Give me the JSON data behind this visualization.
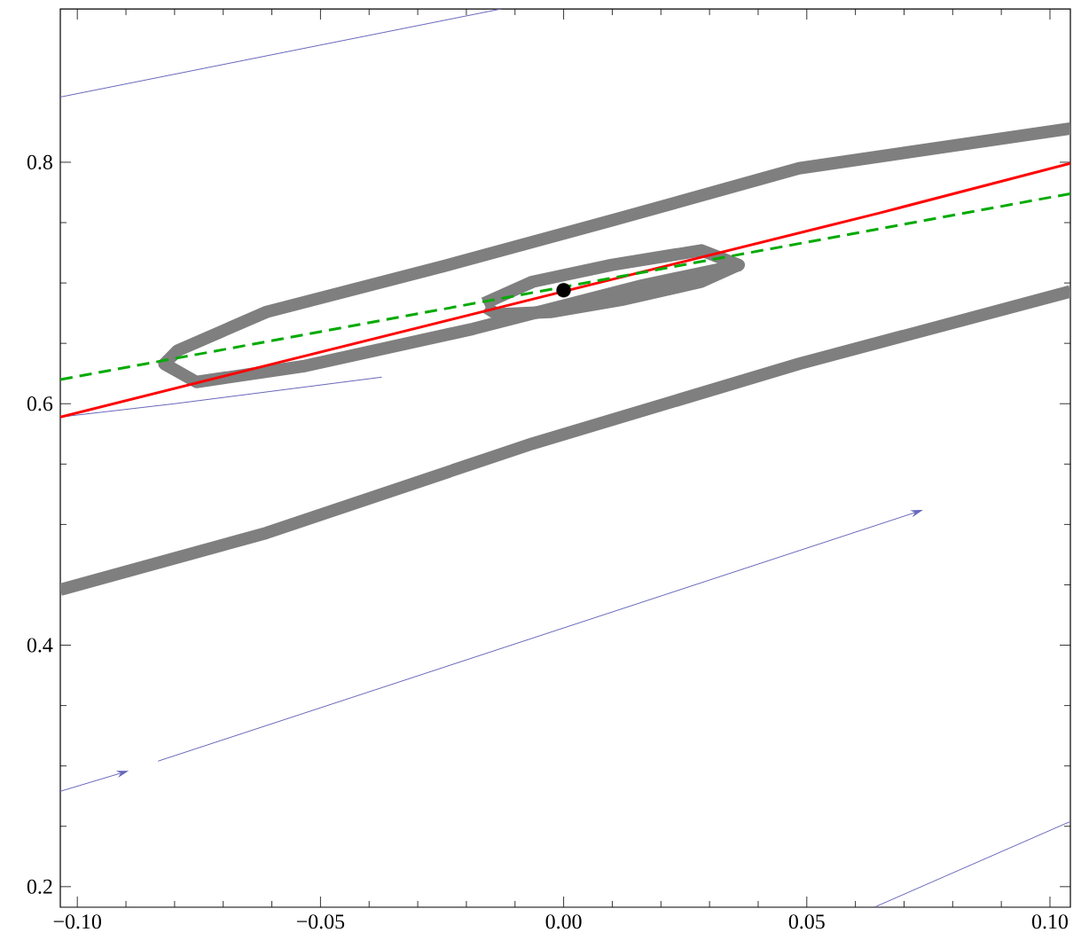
{
  "chart_data": {
    "type": "line",
    "xlim": [
      -0.1035,
      0.1042
    ],
    "ylim": [
      0.183,
      0.927
    ],
    "xticks": [
      {
        "value": -0.1,
        "label": "−0.10"
      },
      {
        "value": -0.05,
        "label": "−0.05"
      },
      {
        "value": 0,
        "label": "0.00"
      },
      {
        "value": 0.05,
        "label": "0.05"
      },
      {
        "value": 0.1,
        "label": "0.10"
      }
    ],
    "yticks": [
      {
        "value": 0.2,
        "label": "0.2"
      },
      {
        "value": 0.4,
        "label": "0.4"
      },
      {
        "value": 0.6,
        "label": "0.6"
      },
      {
        "value": 0.8,
        "label": "0.8"
      }
    ],
    "series": [
      {
        "color": "#7f7f7f",
        "x": [
          0.1042,
          0.0484,
          0.0119,
          -0.0246,
          -0.0611,
          -0.0794,
          -0.0821,
          -0.0755,
          -0.0536,
          -0.0186,
          0.0162,
          0.0363
        ],
        "values": [
          0.828,
          0.795,
          0.754,
          0.714,
          0.676,
          0.644,
          0.633,
          0.618,
          0.631,
          0.662,
          0.698,
          0.715
        ]
      },
      {
        "color": "#7f7f7f",
        "x": [
          -0.0164,
          -0.0064,
          0.01,
          0.0283,
          0.036,
          0.0283,
          0.0119,
          -0.0027,
          -0.0137,
          -0.016
        ],
        "values": [
          0.683,
          0.701,
          0.715,
          0.727,
          0.715,
          0.701,
          0.686,
          0.676,
          0.674,
          0.68
        ]
      },
      {
        "color": "#7f7f7f",
        "x": [
          -0.1035,
          -0.0611,
          -0.0064,
          0.0484,
          0.1042
        ],
        "values": [
          0.446,
          0.493,
          0.567,
          0.633,
          0.693
        ]
      },
      {
        "color": "#6666bb",
        "x": [
          -0.1035,
          -0.0128
        ],
        "values": [
          0.854,
          0.927
        ]
      },
      {
        "color": "#6666bb",
        "x": [
          -0.1035,
          -0.08,
          -0.0374
        ],
        "values": [
          0.589,
          0.6,
          0.622
        ]
      },
      {
        "color": "#6666bb",
        "x": [
          0.0639,
          0.1042
        ],
        "values": [
          0.183,
          0.254
        ]
      },
      {
        "color": "#ff0000",
        "x": [
          -0.1035,
          0.0,
          0.065,
          0.1042
        ],
        "values": [
          0.589,
          0.693,
          0.758,
          0.799
        ]
      },
      {
        "color": "#00aa00",
        "line_style": "dashed",
        "x": [
          -0.1035,
          0.1042
        ],
        "values": [
          0.62,
          0.774
        ]
      },
      {
        "type": "scatter",
        "marker": "circle",
        "color": "#000000",
        "x": [
          0.0
        ],
        "values": [
          0.694
        ]
      }
    ]
  }
}
